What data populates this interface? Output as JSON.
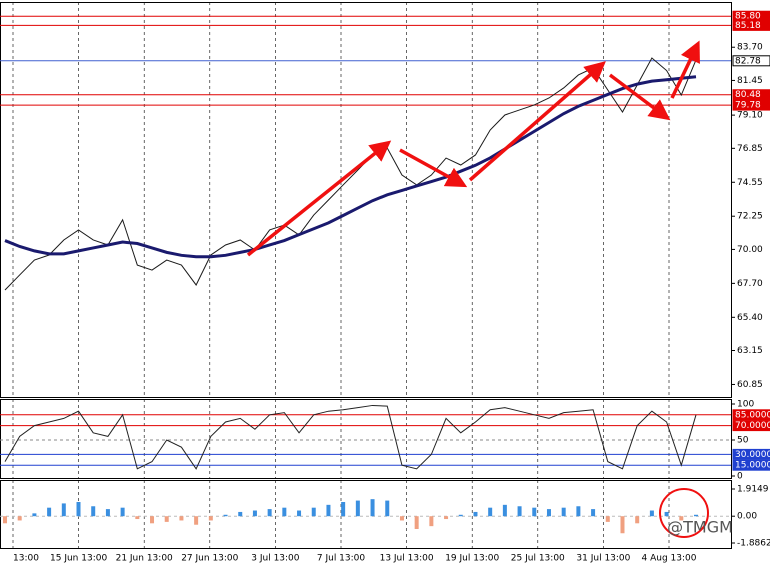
{
  "chart_data": [
    {
      "type": "line",
      "ylim": [
        60,
        86.9
      ],
      "yticks": [
        60.85,
        63.15,
        {
          "value": 65.4,
          "label": "65.40"
        },
        {
          "value": 67.7,
          "label": "67.70"
        },
        {
          "value": 70,
          "label": "70.00"
        },
        72.25,
        74.55,
        76.85,
        {
          "value": 79.1,
          "label": "79.10"
        },
        81.45,
        {
          "value": 83.7,
          "label": "83.70"
        }
      ],
      "levels": [
        {
          "value": 85.8,
          "label": "85.80",
          "color": "#e00000"
        },
        {
          "value": 85.18,
          "label": "85.18",
          "color": "#e00000"
        },
        {
          "value": 82.78,
          "label": "82.78",
          "color": "#4060d0"
        },
        {
          "value": 80.48,
          "label": "80.48",
          "color": "#e00000"
        },
        {
          "value": 79.78,
          "label": "79.78",
          "color": "#e00000"
        }
      ],
      "xticks": [
        "13:00",
        "15 Jun 13:00",
        "21 Jun 13:00",
        "27 Jun 13:00",
        "3 Jul 13:00",
        "7 Jul 13:00",
        "13 Jul 13:00",
        "19 Jul 13:00",
        "25 Jul 13:00",
        "31 Jul 13:00",
        "4 Aug 13:00"
      ],
      "watermark": "@TMGM",
      "series": [
        {
          "color": "#1a1a1a",
          "values": [
            67.25,
            68.27,
            69.28,
            69.62,
            70.64,
            71.32,
            70.64,
            70.3,
            72.0,
            68.94,
            68.6,
            69.28,
            68.94,
            67.59,
            69.62,
            70.3,
            70.64,
            69.96,
            71.32,
            71.65,
            70.98,
            72.33,
            73.35,
            74.37,
            75.38,
            76.4,
            76.87,
            75.04,
            74.37,
            75.04,
            76.19,
            75.72,
            76.4,
            78.09,
            79.11,
            79.45,
            79.79,
            80.26,
            80.94,
            81.82,
            82.29,
            80.8,
            79.31,
            81.14,
            82.97,
            82.12,
            80.46,
            82.84
          ]
        },
        {
          "color": "#1a1a6e",
          "values": [
            70.6,
            70.2,
            69.9,
            69.7,
            69.7,
            69.9,
            70.1,
            70.3,
            70.5,
            70.4,
            70.1,
            69.8,
            69.6,
            69.5,
            69.5,
            69.6,
            69.8,
            70.0,
            70.3,
            70.6,
            71.0,
            71.4,
            71.8,
            72.3,
            72.8,
            73.3,
            73.7,
            74.0,
            74.3,
            74.6,
            74.9,
            75.3,
            75.7,
            76.2,
            76.8,
            77.4,
            78.0,
            78.6,
            79.2,
            79.7,
            80.1,
            80.5,
            80.9,
            81.2,
            81.4,
            81.5,
            81.6,
            81.7
          ]
        }
      ]
    },
    {
      "type": "line",
      "ylim": [
        0,
        100
      ],
      "yticks": [
        100,
        50,
        0
      ],
      "levels": [
        {
          "value": 85,
          "label": "85.0000",
          "color": "#e00000"
        },
        {
          "value": 70,
          "label": "70.0000",
          "color": "#e00000"
        },
        {
          "value": 30,
          "label": "30.0000",
          "color": "#2040d0"
        },
        {
          "value": 15,
          "label": "15.0000",
          "color": "#2040d0"
        }
      ],
      "series": [
        {
          "color": "#222222",
          "values": [
            20,
            55,
            70,
            75,
            80,
            90,
            60,
            55,
            85,
            10,
            20,
            50,
            40,
            10,
            55,
            75,
            80,
            65,
            85,
            88,
            60,
            85,
            90,
            92,
            95,
            98,
            97,
            15,
            10,
            30,
            80,
            60,
            75,
            92,
            95,
            90,
            85,
            80,
            88,
            90,
            92,
            20,
            10,
            70,
            90,
            75,
            15,
            85
          ]
        }
      ]
    },
    {
      "type": "bar",
      "ylim": [
        -1.8862,
        1.9149
      ],
      "yticks": [
        1.9149,
        {
          "value": 0,
          "label": "0.00"
        },
        -1.8862
      ],
      "pos_color": "#3a8fe0",
      "neg_color": "#f0a080",
      "values": [
        -0.5,
        -0.3,
        0.2,
        0.6,
        0.9,
        1.0,
        0.7,
        0.5,
        0.6,
        -0.2,
        -0.5,
        -0.4,
        -0.3,
        -0.6,
        -0.3,
        0.1,
        0.3,
        0.4,
        0.5,
        0.6,
        0.4,
        0.6,
        0.8,
        1.0,
        1.1,
        1.2,
        1.1,
        -0.3,
        -0.9,
        -0.7,
        -0.2,
        0.1,
        0.3,
        0.6,
        0.8,
        0.7,
        0.6,
        0.5,
        0.6,
        0.7,
        0.5,
        -0.4,
        -1.2,
        -0.5,
        0.4,
        0.3,
        -0.3,
        0.1
      ]
    }
  ]
}
